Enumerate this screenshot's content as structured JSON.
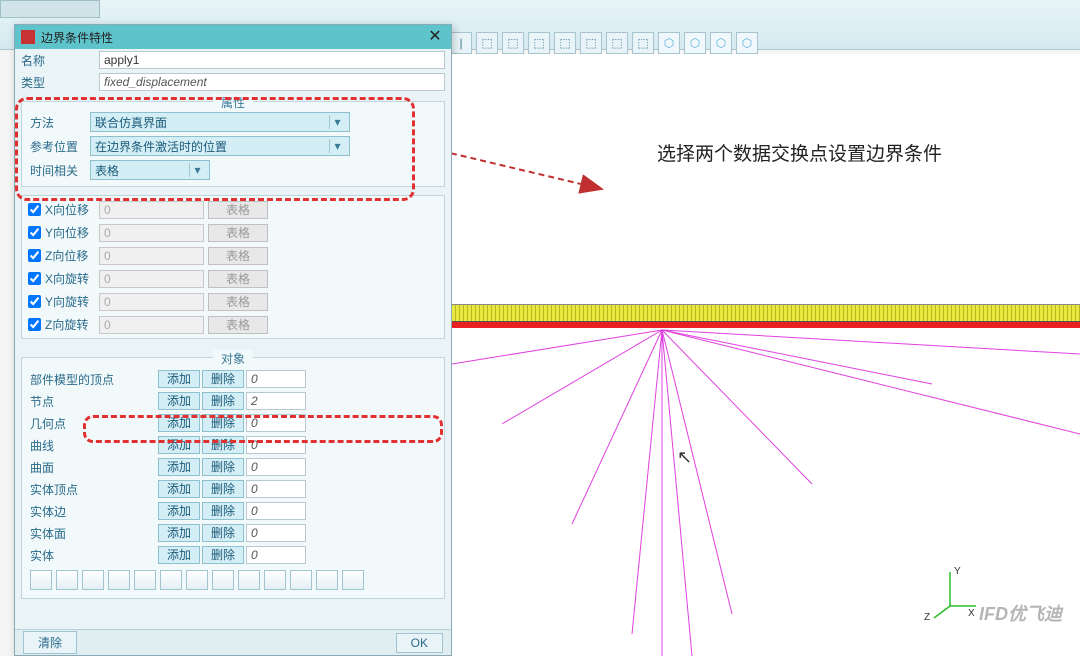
{
  "dialog": {
    "title": "边界条件特性",
    "name_label": "名称",
    "name_value": "apply1",
    "type_label": "类型",
    "type_value": "fixed_displacement",
    "props": {
      "title": "属性",
      "method_label": "方法",
      "method_value": "联合仿真界面",
      "refpos_label": "参考位置",
      "refpos_value": "在边界条件激活时的位置",
      "time_label": "时间相关",
      "time_value": "表格"
    },
    "disp": [
      {
        "label": "X向位移",
        "checked": true,
        "val": "0",
        "btn": "表格"
      },
      {
        "label": "Y向位移",
        "checked": true,
        "val": "0",
        "btn": "表格"
      },
      {
        "label": "Z向位移",
        "checked": true,
        "val": "0",
        "btn": "表格"
      },
      {
        "label": "X向旋转",
        "checked": true,
        "val": "0",
        "btn": "表格"
      },
      {
        "label": "Y向旋转",
        "checked": true,
        "val": "0",
        "btn": "表格"
      },
      {
        "label": "Z向旋转",
        "checked": true,
        "val": "0",
        "btn": "表格"
      }
    ],
    "objects": {
      "title": "对象",
      "add_label": "添加",
      "del_label": "删除",
      "rows": [
        {
          "label": "部件模型的顶点",
          "count": "0"
        },
        {
          "label": "节点",
          "count": "2"
        },
        {
          "label": "几何点",
          "count": "0"
        },
        {
          "label": "曲线",
          "count": "0"
        },
        {
          "label": "曲面",
          "count": "0"
        },
        {
          "label": "实体顶点",
          "count": "0"
        },
        {
          "label": "实体边",
          "count": "0"
        },
        {
          "label": "实体面",
          "count": "0"
        },
        {
          "label": "实体",
          "count": "0"
        }
      ]
    },
    "clear_label": "清除",
    "ok_label": "OK"
  },
  "annotation": "选择两个数据交换点设置边界条件",
  "axes": {
    "x": "X",
    "y": "Y",
    "z": "Z"
  },
  "watermark": "IFD优飞迪",
  "colors": {
    "titlebar": "#5ec3ca",
    "red_dash": "#e03030",
    "mesh_yellow": "#e8e840",
    "mesh_red": "#e82020",
    "magenta": "#e040e0",
    "arrow": "#c03030"
  }
}
